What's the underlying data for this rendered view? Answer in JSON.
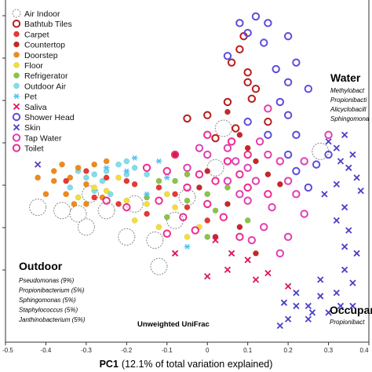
{
  "chart_data": {
    "type": "scatter",
    "xlabel_bold": "PC1",
    "xlabel_rest": "(12.1% of total variation explained)",
    "center_label": "Unweighted UniFrac",
    "xlim": [
      -0.5,
      0.4
    ],
    "x_ticks": [
      "-0.5",
      "-0.4",
      "-0.3",
      "-0.2",
      "-0.1",
      "0",
      "0.1",
      "0.2",
      "0.3",
      "0.4"
    ],
    "legend": [
      {
        "name": "Air Indoor",
        "color": "#cccccc",
        "marker": "ring-dashed"
      },
      {
        "name": "Bathtub Tiles",
        "color": "#b71c1c",
        "marker": "ring"
      },
      {
        "name": "Carpet",
        "color": "#e53935",
        "marker": "dot"
      },
      {
        "name": "Countertop",
        "color": "#c62828",
        "marker": "dot"
      },
      {
        "name": "Doorstep",
        "color": "#ef8a1a",
        "marker": "dot"
      },
      {
        "name": "Floor",
        "color": "#f3de3b",
        "marker": "dot"
      },
      {
        "name": "Refrigerator",
        "color": "#8bc34a",
        "marker": "dot"
      },
      {
        "name": "Outdoor Air",
        "color": "#80deea",
        "marker": "dot"
      },
      {
        "name": "Pet",
        "color": "#4fc3f7",
        "marker": "asterisk"
      },
      {
        "name": "Saliva",
        "color": "#e0115f",
        "marker": "x"
      },
      {
        "name": "Shower Head",
        "color": "#5c4ddc",
        "marker": "ring"
      },
      {
        "name": "Skin",
        "color": "#4a3fc7",
        "marker": "x"
      },
      {
        "name": "Tap Water",
        "color": "#e040b0",
        "marker": "ring"
      },
      {
        "name": "Toilet",
        "color": "#ee2c8f",
        "marker": "ring"
      }
    ],
    "groups": {
      "water": {
        "title": "Water",
        "items": [
          "Methylobact",
          "Propionibacti",
          "Alicyclobacill",
          "Sphingomona"
        ]
      },
      "outdoor": {
        "title": "Outdoor",
        "items": [
          "Pseudomonas (9%)",
          "Propionibacterium (5%)",
          "Sphingomonas (5%)",
          "Staphylococcus (5%)",
          "Janthinobacterium (5%)"
        ]
      },
      "occupant": {
        "title": "Occupan",
        "items": [
          "Propionibact"
        ]
      }
    },
    "series": [
      {
        "name": "Air Indoor",
        "points": [
          [
            -0.42,
            -0.06
          ],
          [
            -0.32,
            -0.08
          ],
          [
            -0.29,
            -0.02
          ],
          [
            -0.25,
            -0.07
          ],
          [
            -0.2,
            -0.15
          ],
          [
            -0.18,
            -0.05
          ],
          [
            -0.13,
            -0.16
          ],
          [
            -0.08,
            -0.1
          ],
          [
            -0.05,
            -0.03
          ],
          [
            0.02,
            0.06
          ],
          [
            0.28,
            0.11
          ],
          [
            -0.3,
            -0.12
          ],
          [
            -0.36,
            -0.07
          ],
          [
            -0.12,
            -0.24
          ],
          [
            0.04,
            0.18
          ]
        ]
      },
      {
        "name": "Bathtub Tiles",
        "points": [
          [
            0.06,
            0.38
          ],
          [
            0.08,
            0.42
          ],
          [
            0.1,
            0.35
          ],
          [
            0.12,
            0.3
          ],
          [
            0.05,
            0.26
          ],
          [
            0.0,
            0.22
          ],
          [
            -0.05,
            0.21
          ],
          [
            0.02,
            0.15
          ],
          [
            0.07,
            0.18
          ],
          [
            0.15,
            0.2
          ],
          [
            0.1,
            0.32
          ],
          [
            0.09,
            0.46
          ],
          [
            0.11,
            0.27
          ]
        ]
      },
      {
        "name": "Carpet",
        "points": [
          [
            -0.3,
            0.05
          ],
          [
            -0.25,
            0.03
          ],
          [
            -0.2,
            0.02
          ],
          [
            -0.28,
            -0.03
          ],
          [
            -0.18,
            0.01
          ],
          [
            -0.35,
            0.02
          ],
          [
            -0.12,
            0.0
          ],
          [
            -0.22,
            -0.05
          ],
          [
            -0.08,
            -0.02
          ],
          [
            -0.15,
            -0.08
          ],
          [
            0.0,
            -0.1
          ],
          [
            -0.05,
            -0.06
          ]
        ]
      },
      {
        "name": "Countertop",
        "points": [
          [
            0.05,
            0.23
          ],
          [
            0.08,
            0.16
          ],
          [
            0.12,
            0.08
          ],
          [
            0.0,
            0.05
          ],
          [
            -0.02,
            0.0
          ],
          [
            0.1,
            0.12
          ],
          [
            0.15,
            0.04
          ],
          [
            0.05,
            -0.05
          ],
          [
            0.02,
            -0.15
          ],
          [
            0.08,
            -0.12
          ],
          [
            0.18,
            0.01
          ],
          [
            -0.08,
            0.1
          ],
          [
            0.12,
            -0.2
          ]
        ]
      },
      {
        "name": "Doorstep",
        "points": [
          [
            -0.38,
            0.02
          ],
          [
            -0.35,
            -0.02
          ],
          [
            -0.32,
            0.06
          ],
          [
            -0.36,
            0.07
          ],
          [
            -0.3,
            0.01
          ],
          [
            -0.28,
            0.07
          ],
          [
            -0.4,
            -0.02
          ],
          [
            -0.33,
            -0.05
          ],
          [
            -0.25,
            0.08
          ],
          [
            -0.38,
            0.05
          ],
          [
            -0.3,
            -0.05
          ],
          [
            -0.34,
            0.03
          ],
          [
            -0.42,
            0.03
          ],
          [
            -0.26,
            -0.03
          ]
        ]
      },
      {
        "name": "Floor",
        "points": [
          [
            -0.25,
            -0.01
          ],
          [
            -0.2,
            -0.04
          ],
          [
            -0.15,
            -0.05
          ],
          [
            -0.1,
            -0.02
          ],
          [
            -0.22,
            0.03
          ],
          [
            -0.28,
            0.0
          ],
          [
            -0.18,
            -0.1
          ],
          [
            -0.12,
            -0.12
          ],
          [
            -0.32,
            -0.03
          ],
          [
            -0.08,
            -0.06
          ],
          [
            -0.05,
            -0.15
          ],
          [
            -0.02,
            -0.12
          ]
        ]
      },
      {
        "name": "Refrigerator",
        "points": [
          [
            -0.12,
            0.02
          ],
          [
            -0.08,
            0.02
          ],
          [
            -0.05,
            -0.04
          ],
          [
            0.0,
            -0.02
          ],
          [
            -0.1,
            -0.09
          ],
          [
            0.05,
            0.0
          ],
          [
            0.02,
            -0.07
          ],
          [
            -0.15,
            -0.03
          ],
          [
            -0.05,
            0.04
          ],
          [
            0.0,
            -0.15
          ],
          [
            0.1,
            -0.1
          ]
        ]
      },
      {
        "name": "Outdoor Air",
        "points": [
          [
            -0.34,
            0.0
          ],
          [
            -0.3,
            0.03
          ],
          [
            -0.28,
            -0.01
          ],
          [
            -0.25,
            0.05
          ],
          [
            -0.22,
            0.07
          ],
          [
            -0.2,
            0.04
          ],
          [
            -0.26,
            0.02
          ],
          [
            -0.18,
            0.06
          ],
          [
            -0.32,
            0.05
          ],
          [
            -0.24,
            -0.02
          ],
          [
            -0.2,
            0.08
          ],
          [
            -0.15,
            0.04
          ],
          [
            -0.28,
            0.04
          ]
        ]
      },
      {
        "name": "Pet",
        "points": [
          [
            -0.18,
            0.09
          ],
          [
            -0.2,
            0.05
          ],
          [
            -0.12,
            0.08
          ],
          [
            -0.1,
            0.03
          ],
          [
            -0.15,
            -0.02
          ],
          [
            -0.05,
            -0.18
          ],
          [
            -0.25,
            0.06
          ]
        ]
      },
      {
        "name": "Saliva",
        "points": [
          [
            -0.08,
            -0.2
          ],
          [
            0.02,
            -0.16
          ],
          [
            0.06,
            -0.2
          ],
          [
            0.1,
            -0.22
          ],
          [
            0.0,
            -0.27
          ],
          [
            0.05,
            -0.25
          ],
          [
            0.15,
            -0.26
          ],
          [
            0.2,
            -0.3
          ],
          [
            0.12,
            -0.28
          ]
        ]
      },
      {
        "name": "Shower Head",
        "points": [
          [
            0.12,
            0.52
          ],
          [
            0.15,
            0.5
          ],
          [
            0.1,
            0.47
          ],
          [
            0.08,
            0.5
          ],
          [
            0.2,
            0.46
          ],
          [
            0.22,
            0.38
          ],
          [
            0.2,
            0.32
          ],
          [
            0.25,
            0.3
          ],
          [
            0.18,
            0.26
          ],
          [
            0.2,
            0.22
          ],
          [
            0.15,
            0.16
          ],
          [
            0.2,
            0.1
          ],
          [
            0.22,
            0.05
          ],
          [
            0.25,
            0.0
          ],
          [
            0.3,
            0.1
          ],
          [
            0.05,
            0.4
          ],
          [
            0.14,
            0.44
          ],
          [
            0.17,
            0.36
          ],
          [
            0.1,
            0.2
          ],
          [
            0.22,
            0.16
          ],
          [
            0.27,
            0.07
          ]
        ]
      },
      {
        "name": "Skin",
        "points": [
          [
            0.3,
            0.14
          ],
          [
            0.32,
            0.12
          ],
          [
            0.34,
            0.16
          ],
          [
            0.36,
            0.1
          ],
          [
            0.33,
            0.08
          ],
          [
            0.35,
            0.06
          ],
          [
            0.37,
            0.03
          ],
          [
            0.32,
            0.01
          ],
          [
            0.29,
            -0.02
          ],
          [
            0.34,
            -0.06
          ],
          [
            0.32,
            -0.1
          ],
          [
            0.35,
            -0.13
          ],
          [
            0.37,
            -0.2
          ],
          [
            0.34,
            -0.25
          ],
          [
            0.36,
            -0.29
          ],
          [
            0.32,
            -0.32
          ],
          [
            0.28,
            -0.33
          ],
          [
            0.25,
            -0.36
          ],
          [
            0.22,
            -0.36
          ],
          [
            0.2,
            -0.4
          ],
          [
            0.18,
            -0.42
          ],
          [
            0.25,
            -0.4
          ],
          [
            0.3,
            -0.38
          ],
          [
            0.33,
            -0.36
          ],
          [
            0.36,
            -0.36
          ],
          [
            0.22,
            -0.32
          ],
          [
            0.28,
            -0.28
          ],
          [
            0.19,
            -0.35
          ],
          [
            0.26,
            -0.38
          ],
          [
            -0.42,
            0.07
          ],
          [
            0.38,
            -0.01
          ],
          [
            0.34,
            -0.18
          ]
        ]
      },
      {
        "name": "Tap Water",
        "points": [
          [
            0.05,
            0.12
          ],
          [
            0.1,
            0.06
          ],
          [
            0.15,
            0.1
          ],
          [
            0.12,
            0.02
          ],
          [
            0.08,
            -0.02
          ],
          [
            0.18,
            0.08
          ],
          [
            0.2,
            0.02
          ],
          [
            0.22,
            -0.02
          ],
          [
            0.16,
            -0.06
          ],
          [
            0.1,
            -0.04
          ],
          [
            0.14,
            -0.12
          ],
          [
            0.2,
            -0.15
          ],
          [
            0.24,
            -0.08
          ],
          [
            0.18,
            -0.2
          ],
          [
            0.0,
            0.1
          ],
          [
            0.05,
            0.02
          ],
          [
            -0.05,
            0.06
          ],
          [
            0.13,
            0.14
          ],
          [
            0.24,
            0.08
          ],
          [
            0.3,
            0.16
          ],
          [
            0.15,
            0.24
          ],
          [
            0.07,
            0.08
          ],
          [
            -0.02,
            0.12
          ],
          [
            0.11,
            -0.16
          ]
        ]
      },
      {
        "name": "Toilet",
        "points": [
          [
            -0.08,
            0.1
          ],
          [
            -0.1,
            0.05
          ],
          [
            -0.02,
            0.04
          ],
          [
            0.02,
            0.02
          ],
          [
            0.05,
            0.08
          ],
          [
            0.08,
            0.04
          ],
          [
            -0.05,
            0.0
          ],
          [
            0.0,
            -0.05
          ],
          [
            -0.12,
            -0.04
          ],
          [
            -0.06,
            -0.09
          ],
          [
            0.04,
            -0.09
          ],
          [
            0.1,
            0.0
          ],
          [
            0.06,
            0.14
          ],
          [
            -0.15,
            0.06
          ],
          [
            0.0,
            0.16
          ],
          [
            0.1,
            0.1
          ],
          [
            -0.2,
            -0.06
          ],
          [
            0.15,
            -0.02
          ],
          [
            0.08,
            -0.15
          ],
          [
            -0.03,
            -0.13
          ],
          [
            -0.25,
            -0.04
          ],
          [
            -0.1,
            -0.14
          ]
        ]
      }
    ]
  }
}
